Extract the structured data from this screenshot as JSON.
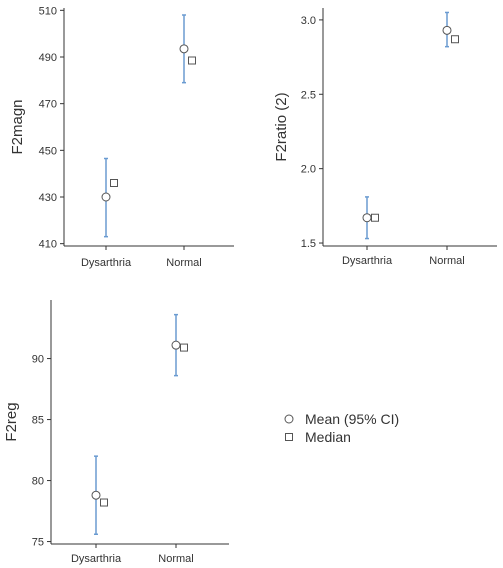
{
  "chart_data": [
    {
      "type": "scatter",
      "ylabel": "F2magn",
      "categories": [
        "Dysarthria",
        "Normal"
      ],
      "yticks": [
        410,
        430,
        450,
        470,
        490,
        510
      ],
      "ylim": [
        409,
        511
      ],
      "mean": [
        430,
        493.5
      ],
      "ci_low": [
        413,
        479
      ],
      "ci_high": [
        446.5,
        508
      ],
      "median": [
        436,
        488.5
      ]
    },
    {
      "type": "scatter",
      "ylabel": "F2ratio (2)",
      "categories": [
        "Dysarthria",
        "Normal"
      ],
      "yticks": [
        1.5,
        2.0,
        2.5,
        3.0
      ],
      "ytick_labels": [
        "1.5",
        "2.0",
        "2.5",
        "3.0"
      ],
      "ylim": [
        1.48,
        3.08
      ],
      "mean": [
        1.67,
        2.93
      ],
      "ci_low": [
        1.53,
        2.82
      ],
      "ci_high": [
        1.81,
        3.05
      ],
      "median": [
        1.67,
        2.87
      ]
    },
    {
      "type": "scatter",
      "ylabel": "F2reg",
      "categories": [
        "Dysarthria",
        "Normal"
      ],
      "yticks": [
        75,
        80,
        85,
        90
      ],
      "ylim": [
        74.8,
        94.8
      ],
      "mean": [
        78.8,
        91.1
      ],
      "ci_low": [
        75.6,
        88.6
      ],
      "ci_high": [
        82,
        93.6
      ],
      "median": [
        78.2,
        90.9
      ]
    }
  ],
  "legend": {
    "mean_label": "Mean (95% CI)",
    "median_label": "Median"
  },
  "colors": {
    "errorbar": "#6A9BD1",
    "marker_stroke": "#555555",
    "axis": "#333333"
  }
}
